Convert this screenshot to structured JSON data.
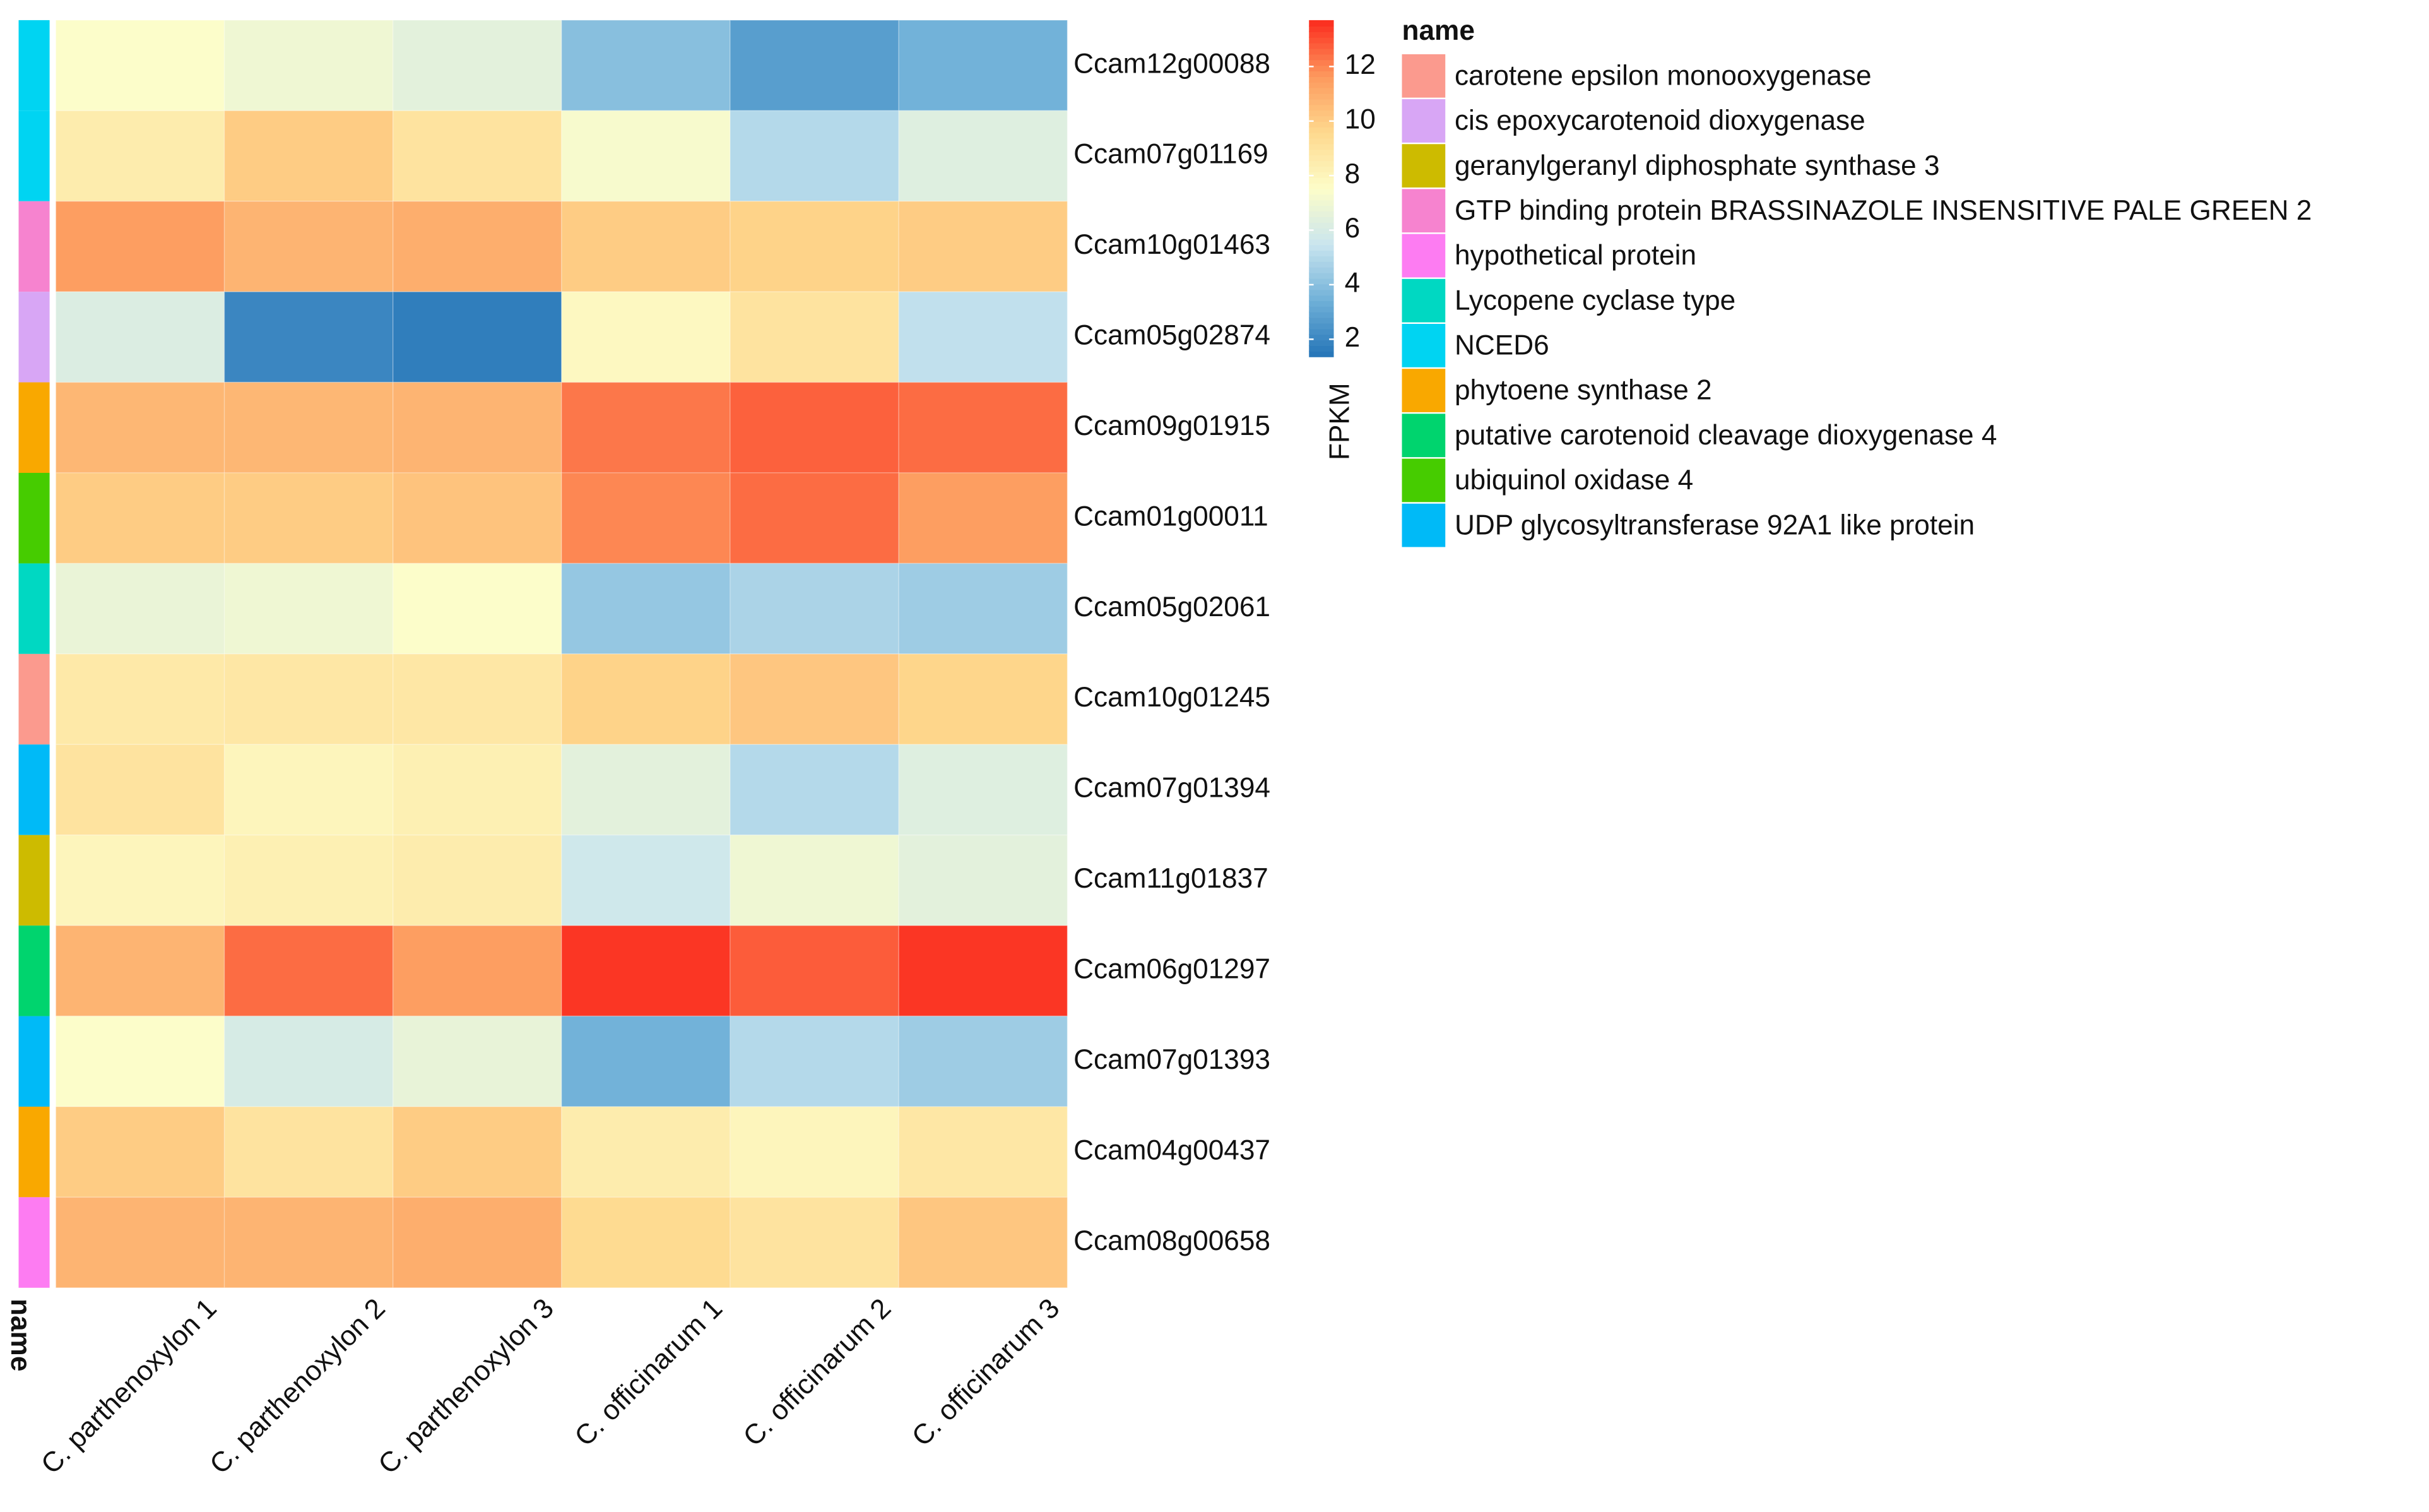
{
  "chart_data": {
    "type": "heatmap",
    "columns": [
      "C. parthenoxylon 1",
      "C. parthenoxylon 2",
      "C. parthenoxylon 3",
      "C. officinarum 1",
      "C. officinarum 2",
      "C. officinarum 3"
    ],
    "rows": [
      "Ccam12g00088",
      "Ccam07g01169",
      "Ccam10g01463",
      "Ccam05g02874",
      "Ccam09g01915",
      "Ccam01g00011",
      "Ccam05g02061",
      "Ccam10g01245",
      "Ccam07g01394",
      "Ccam11g01837",
      "Ccam06g01297",
      "Ccam07g01393",
      "Ccam04g00437",
      "Ccam08g00658"
    ],
    "values": [
      [
        7.5,
        7,
        6.5,
        4,
        2.8,
        3.5
      ],
      [
        8.5,
        10,
        9,
        7.3,
        5,
        6.3
      ],
      [
        11.5,
        10.8,
        11,
        10,
        9.8,
        10
      ],
      [
        6.2,
        2,
        1.7,
        7.8,
        9,
        5.3
      ],
      [
        10.7,
        10.7,
        10.8,
        12.3,
        12.7,
        12.5
      ],
      [
        10,
        10,
        10.3,
        12,
        12.5,
        11.5
      ],
      [
        6.8,
        7,
        7.5,
        4.3,
        4.8,
        4.5
      ],
      [
        8.7,
        8.8,
        8.8,
        9.8,
        10.2,
        9.7
      ],
      [
        9,
        8,
        8.3,
        6.5,
        5,
        6.3
      ],
      [
        8,
        8.3,
        8.5,
        5.7,
        7,
        6.5
      ],
      [
        10.8,
        12.5,
        11.5,
        13.5,
        12.8,
        13.5
      ],
      [
        7.5,
        6,
        6.7,
        3.5,
        5,
        4.5
      ],
      [
        10,
        9,
        10,
        8.5,
        8,
        8.8
      ],
      [
        10.8,
        10.8,
        11,
        9.5,
        9,
        10.2
      ]
    ],
    "row_annotation": [
      "NCED6",
      "NCED6",
      "GTP binding protein BRASSINAZOLE INSENSITIVE PALE GREEN 2",
      "cis epoxycarotenoid dioxygenase",
      "phytoene synthase 2",
      "ubiquinol oxidase 4",
      "Lycopene cyclase type",
      "carotene epsilon monooxygenase",
      "UDP glycosyltransferase 92A1 like protein",
      "geranylgeranyl diphosphate synthase 3",
      "putative carotenoid cleavage dioxygenase 4",
      "UDP glycosyltransferase 92A1 like protein",
      "phytoene synthase 2",
      "hypothetical protein"
    ],
    "annotation_label": "name",
    "colorbar": {
      "title": "FPKM",
      "lim": [
        1.37,
        13.7
      ],
      "ticks": [
        2,
        4,
        6,
        8,
        10,
        12
      ],
      "colors": [
        "#2474b7",
        "#6fb0d8",
        "#c9e5ef",
        "#fdfdc9",
        "#fed98e",
        "#fd9a5e",
        "#fb2b1e"
      ]
    },
    "legend": {
      "title": "name",
      "items": [
        {
          "name": "carotene epsilon monooxygenase",
          "color": "#fb9a8e"
        },
        {
          "name": "cis epoxycarotenoid dioxygenase",
          "color": "#d8a6f5"
        },
        {
          "name": "geranylgeranyl diphosphate synthase 3",
          "color": "#cdbb00"
        },
        {
          "name": "GTP binding protein BRASSINAZOLE INSENSITIVE PALE GREEN 2",
          "color": "#f683cf"
        },
        {
          "name": "hypothetical protein",
          "color": "#fd7cf2"
        },
        {
          "name": "Lycopene cyclase type",
          "color": "#00d8c2"
        },
        {
          "name": "NCED6",
          "color": "#00d4f2"
        },
        {
          "name": "phytoene synthase 2",
          "color": "#f9a800"
        },
        {
          "name": "putative carotenoid cleavage dioxygenase 4",
          "color": "#00d46e"
        },
        {
          "name": "ubiquinol oxidase 4",
          "color": "#46cc00"
        },
        {
          "name": "UDP glycosyltransferase 92A1 like protein",
          "color": "#00baf7"
        }
      ]
    }
  }
}
